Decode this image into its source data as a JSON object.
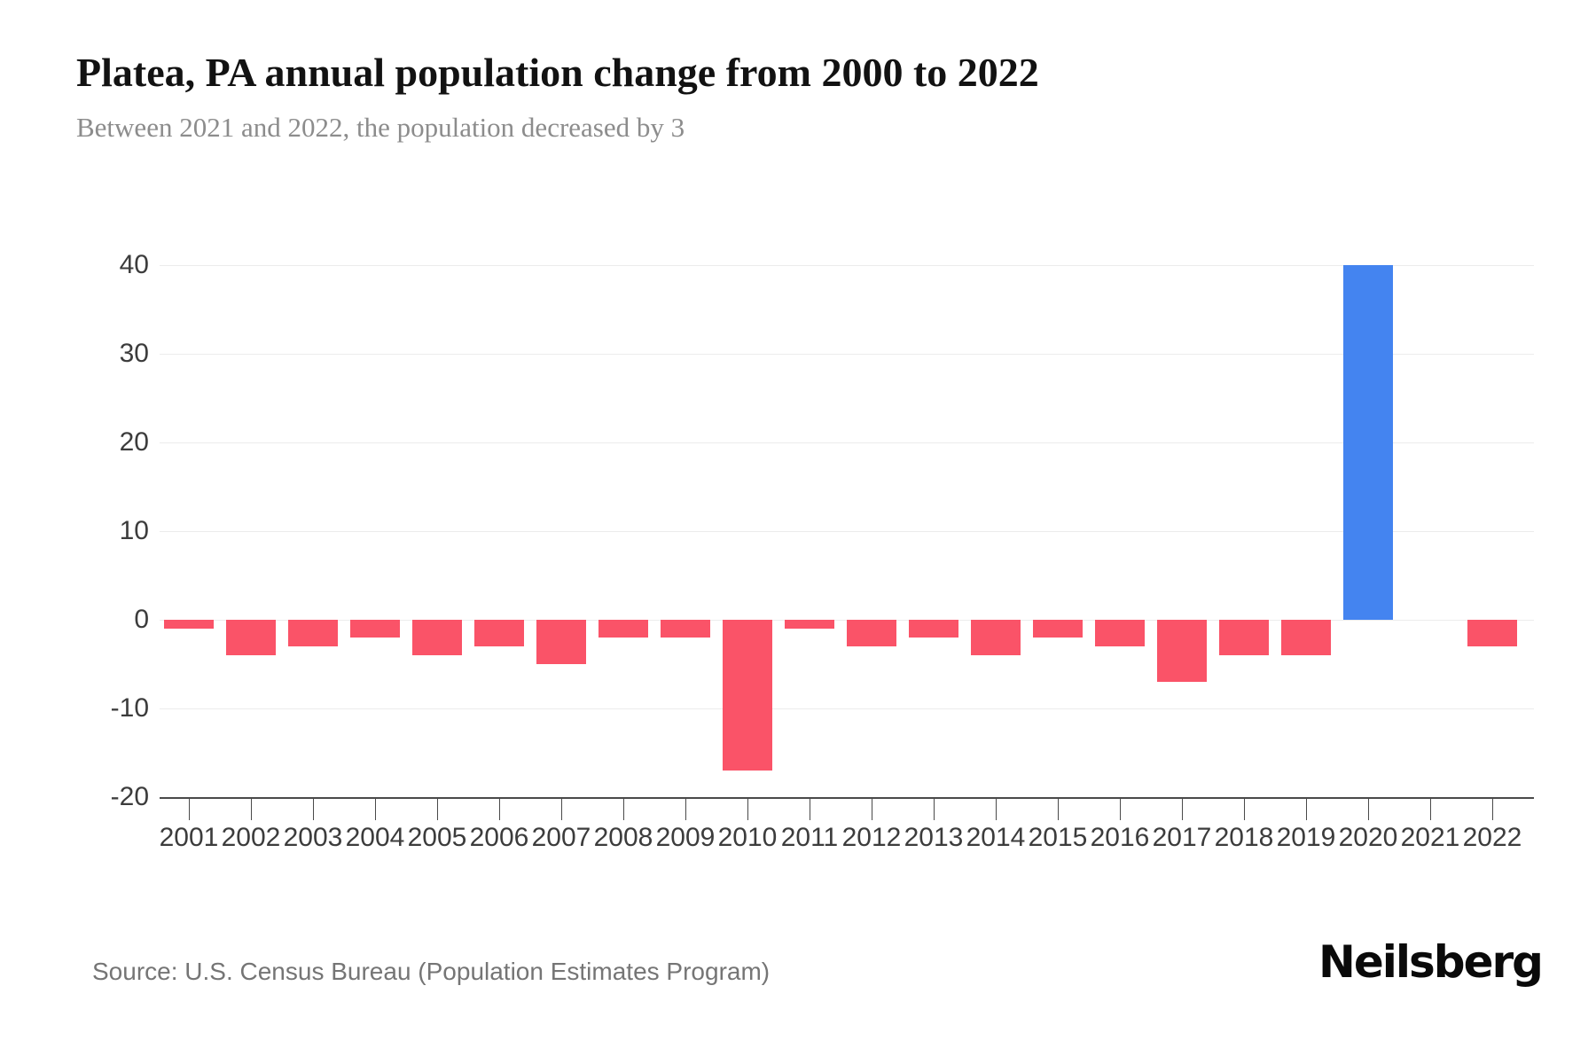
{
  "header": {
    "title": "Platea, PA annual population change from 2000 to 2022",
    "subtitle": "Between 2021 and 2022, the population decreased by 3"
  },
  "footer": {
    "source": "Source: U.S. Census Bureau (Population Estimates Program)",
    "logo": "Neilsberg"
  },
  "chart_data": {
    "type": "bar",
    "title": "Platea, PA annual population change from 2000 to 2022",
    "subtitle": "Between 2021 and 2022, the population decreased by 3",
    "categories": [
      "2001",
      "2002",
      "2003",
      "2004",
      "2005",
      "2006",
      "2007",
      "2008",
      "2009",
      "2010",
      "2011",
      "2012",
      "2013",
      "2014",
      "2015",
      "2016",
      "2017",
      "2018",
      "2019",
      "2020",
      "2021",
      "2022"
    ],
    "values": [
      -1,
      -4,
      -3,
      -2,
      -4,
      -3,
      -5,
      -2,
      -2,
      -17,
      -1,
      -3,
      -2,
      -4,
      -2,
      -3,
      -7,
      -4,
      -4,
      40,
      0,
      -3
    ],
    "xlabel": "",
    "ylabel": "",
    "ylim": [
      -20,
      40
    ],
    "y_ticks": [
      40,
      30,
      20,
      10,
      0,
      -10,
      -20
    ],
    "grid": "horizontal-light",
    "legend": "none",
    "colors": {
      "negative_bar": "#fa5368",
      "positive_bar": "#4484f0",
      "gridline": "#ececec",
      "axis": "#4a4a4a",
      "tick_label": "#3c3c3c"
    }
  }
}
